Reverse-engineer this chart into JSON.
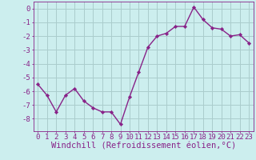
{
  "x": [
    0,
    1,
    2,
    3,
    4,
    5,
    6,
    7,
    8,
    9,
    10,
    11,
    12,
    13,
    14,
    15,
    16,
    17,
    18,
    19,
    20,
    21,
    22,
    23
  ],
  "y": [
    -5.5,
    -6.3,
    -7.5,
    -6.3,
    -5.8,
    -6.7,
    -7.2,
    -7.5,
    -7.5,
    -8.4,
    -6.4,
    -4.6,
    -2.8,
    -2.0,
    -1.8,
    -1.3,
    -1.3,
    0.1,
    -0.8,
    -1.4,
    -1.5,
    -2.0,
    -1.9,
    -2.5
  ],
  "line_color": "#882288",
  "marker": "D",
  "marker_size": 2.2,
  "bg_color": "#cceeee",
  "grid_color": "#aacccc",
  "xlabel": "Windchill (Refroidissement éolien,°C)",
  "ylabel": "",
  "ylim": [
    -8.9,
    0.5
  ],
  "xlim": [
    -0.5,
    23.5
  ],
  "yticks": [
    0,
    -1,
    -2,
    -3,
    -4,
    -5,
    -6,
    -7,
    -8
  ],
  "xticks": [
    0,
    1,
    2,
    3,
    4,
    5,
    6,
    7,
    8,
    9,
    10,
    11,
    12,
    13,
    14,
    15,
    16,
    17,
    18,
    19,
    20,
    21,
    22,
    23
  ],
  "tick_label_fontsize": 6.5,
  "xlabel_fontsize": 7.5,
  "line_width": 1.0,
  "spine_color": "#882288",
  "axis_label_color": "#882288",
  "tick_color": "#882288"
}
